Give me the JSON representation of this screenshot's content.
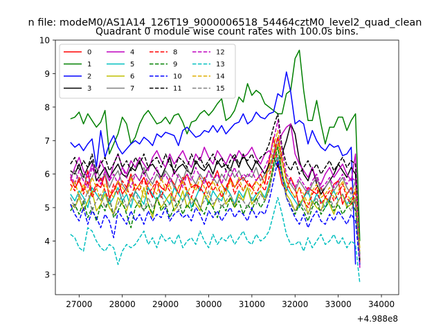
{
  "figure": {
    "suptitle": "n file: modeM0/AS1A14_126T19_9000006518_54464cztM0_level2_quad_clean",
    "offset_label": "+4.988e8"
  },
  "chart_data": {
    "type": "line",
    "title": "Quadrant 0 module wise count rates with 100.0s bins.",
    "xlabel": "",
    "ylabel": "",
    "xlim": [
      26450,
      34400
    ],
    "ylim": [
      2.4,
      10
    ],
    "xticks": [
      27000,
      28000,
      29000,
      30000,
      31000,
      32000,
      33000,
      34000
    ],
    "xtick_labels": [
      "27000",
      "28000",
      "29000",
      "30000",
      "31000",
      "32000",
      "33000",
      "34000"
    ],
    "yticks": [
      3,
      4,
      5,
      6,
      7,
      8,
      9,
      10
    ],
    "ytick_labels": [
      "3",
      "4",
      "5",
      "6",
      "7",
      "8",
      "9",
      "10"
    ],
    "x_offset": 498800000,
    "x_start": 26800,
    "x_step": 100,
    "legend": {
      "placement": "top-left",
      "ncols": 4
    },
    "series": [
      {
        "name": "0",
        "color": "#ff0000",
        "dash": "solid",
        "values": [
          5.9,
          5.6,
          5.8,
          5.5,
          6.1,
          5.4,
          5.7,
          5.6,
          6.0,
          5.3,
          5.5,
          5.8,
          5.4,
          5.6,
          6.0,
          5.5,
          5.7,
          5.9,
          5.6,
          5.3,
          5.8,
          5.6,
          5.5,
          5.9,
          5.7,
          5.4,
          5.8,
          6.0,
          5.6,
          5.7,
          5.5,
          5.9,
          5.6,
          5.8,
          6.1,
          5.7,
          5.5,
          5.9,
          5.6,
          5.8,
          5.9,
          5.7,
          5.6,
          5.8,
          6.0,
          5.7,
          6.4,
          7.1,
          6.3,
          5.7,
          5.5,
          5.9,
          5.6,
          5.0,
          5.3,
          5.6,
          5.5,
          5.4,
          5.6,
          5.3,
          5.2,
          5.7,
          5.8,
          5.1,
          5.4,
          5.6,
          5.1,
          3.4
        ]
      },
      {
        "name": "1",
        "color": "#008000",
        "dash": "solid",
        "values": [
          7.65,
          7.7,
          7.85,
          7.5,
          7.8,
          7.6,
          7.4,
          7.55,
          7.9,
          6.6,
          6.9,
          7.2,
          7.7,
          7.5,
          6.9,
          7.1,
          7.5,
          7.75,
          7.9,
          7.7,
          7.5,
          7.55,
          7.7,
          7.5,
          7.75,
          7.8,
          7.55,
          7.2,
          7.55,
          7.6,
          7.8,
          7.9,
          7.75,
          7.9,
          8.1,
          8.25,
          7.6,
          7.7,
          7.9,
          8.3,
          8.15,
          8.7,
          8.35,
          8.5,
          8.4,
          8.1,
          8.0,
          7.9,
          7.8,
          7.8,
          8.4,
          8.5,
          9.45,
          9.7,
          8.5,
          7.6,
          7.6,
          8.2,
          7.5,
          6.9,
          7.4,
          7.4,
          7.7,
          7.7,
          7.3,
          7.6,
          7.8,
          4.0
        ]
      },
      {
        "name": "2",
        "color": "#0000ff",
        "dash": "solid",
        "values": [
          6.95,
          6.8,
          6.9,
          6.7,
          6.9,
          7.05,
          6.2,
          7.3,
          6.5,
          6.9,
          7.15,
          6.8,
          6.6,
          6.75,
          6.9,
          7.0,
          6.9,
          7.1,
          7.0,
          6.85,
          7.2,
          7.1,
          7.25,
          7.2,
          7.15,
          6.85,
          7.3,
          7.4,
          7.25,
          7.1,
          7.15,
          7.3,
          7.25,
          7.45,
          7.25,
          7.45,
          7.2,
          7.35,
          7.5,
          7.55,
          7.8,
          7.5,
          7.6,
          7.85,
          7.7,
          7.65,
          7.8,
          7.85,
          8.4,
          8.3,
          9.05,
          8.45,
          7.5,
          7.6,
          7.5,
          6.9,
          7.3,
          7.0,
          6.8,
          6.7,
          6.9,
          6.8,
          6.85,
          6.55,
          6.6,
          6.8,
          3.3
        ]
      },
      {
        "name": "3",
        "color": "#000000",
        "dash": "solid",
        "values": [
          6.1,
          6.0,
          6.3,
          5.9,
          6.2,
          6.4,
          5.8,
          6.0,
          6.2,
          5.9,
          6.1,
          6.3,
          6.0,
          5.9,
          6.2,
          6.1,
          6.4,
          6.0,
          6.2,
          6.3,
          6.1,
          5.9,
          6.2,
          6.5,
          6.0,
          6.2,
          6.3,
          6.1,
          6.0,
          6.4,
          6.2,
          6.1,
          6.3,
          6.0,
          6.4,
          6.2,
          6.3,
          6.1,
          6.5,
          6.2,
          6.6,
          6.3,
          6.1,
          6.4,
          6.2,
          6.0,
          6.3,
          6.5,
          6.2,
          6.6,
          7.0,
          7.5,
          7.2,
          6.4,
          6.0,
          5.8,
          6.2,
          5.7,
          5.4,
          5.6,
          5.8,
          6.0,
          6.3,
          6.1,
          5.9,
          6.2,
          6.0,
          3.3
        ]
      },
      {
        "name": "4",
        "color": "#bf00bf",
        "dash": "solid",
        "values": [
          5.8,
          6.2,
          6.5,
          6.1,
          5.9,
          6.3,
          6.0,
          6.4,
          6.1,
          5.8,
          6.3,
          6.6,
          6.2,
          6.0,
          6.4,
          6.2,
          6.5,
          6.3,
          6.1,
          6.5,
          6.7,
          6.4,
          6.2,
          6.6,
          6.3,
          6.5,
          6.7,
          6.4,
          6.2,
          6.6,
          6.4,
          6.8,
          6.5,
          6.3,
          6.7,
          6.5,
          6.3,
          6.6,
          6.4,
          6.7,
          6.5,
          6.6,
          6.8,
          6.5,
          6.3,
          6.6,
          6.7,
          6.5,
          6.9,
          7.2,
          7.4,
          7.5,
          6.6,
          6.3,
          6.1,
          5.9,
          6.2,
          5.8,
          5.7,
          6.0,
          6.2,
          5.9,
          6.1,
          6.3,
          6.0,
          5.8,
          6.6,
          3.2
        ]
      },
      {
        "name": "5",
        "color": "#00bfbf",
        "dash": "solid",
        "values": [
          5.4,
          5.2,
          5.5,
          5.3,
          5.0,
          5.6,
          5.4,
          5.2,
          5.5,
          5.1,
          5.3,
          5.6,
          5.2,
          5.4,
          5.0,
          5.5,
          5.3,
          5.1,
          5.6,
          5.4,
          5.2,
          5.5,
          5.3,
          5.1,
          5.6,
          5.4,
          5.2,
          5.5,
          5.0,
          5.3,
          5.6,
          5.4,
          5.1,
          5.5,
          5.3,
          5.2,
          5.6,
          5.4,
          5.1,
          5.5,
          5.3,
          5.6,
          5.2,
          5.4,
          5.5,
          5.3,
          5.7,
          6.2,
          6.5,
          6.0,
          5.6,
          5.4,
          5.2,
          5.0,
          5.3,
          5.5,
          5.1,
          5.4,
          5.2,
          5.0,
          5.3,
          5.5,
          5.2,
          5.4,
          5.1,
          5.3,
          5.2,
          3.5
        ]
      },
      {
        "name": "6",
        "color": "#bfbf00",
        "dash": "solid",
        "values": [
          5.1,
          5.0,
          5.3,
          4.9,
          5.2,
          5.5,
          4.9,
          5.1,
          5.4,
          5.0,
          4.8,
          5.3,
          5.1,
          4.9,
          5.4,
          5.2,
          5.0,
          5.6,
          5.1,
          4.7,
          5.3,
          5.0,
          5.2,
          5.4,
          4.9,
          5.1,
          5.5,
          5.0,
          5.3,
          5.1,
          4.9,
          5.4,
          5.2,
          5.0,
          5.3,
          5.5,
          5.1,
          5.3,
          5.0,
          5.4,
          5.2,
          5.6,
          5.1,
          5.3,
          5.5,
          5.2,
          5.6,
          6.3,
          6.9,
          6.1,
          5.4,
          5.2,
          4.9,
          5.1,
          5.3,
          4.8,
          5.2,
          5.0,
          4.9,
          5.3,
          5.1,
          4.8,
          5.2,
          5.4,
          5.0,
          5.1,
          5.3,
          3.8
        ]
      },
      {
        "name": "7",
        "color": "#808080",
        "dash": "solid",
        "values": [
          5.9,
          6.1,
          5.8,
          6.0,
          5.7,
          5.9,
          6.2,
          5.8,
          6.0,
          5.6,
          5.9,
          6.1,
          5.7,
          5.5,
          5.9,
          6.0,
          5.8,
          6.2,
          5.9,
          5.7,
          6.0,
          5.8,
          6.1,
          5.9,
          5.6,
          6.0,
          5.8,
          6.2,
          5.9,
          5.7,
          6.0,
          5.8,
          6.1,
          5.9,
          5.7,
          6.0,
          5.8,
          6.2,
          5.9,
          6.1,
          5.8,
          6.0,
          5.9,
          6.2,
          5.8,
          6.0,
          6.1,
          6.6,
          7.1,
          6.4,
          5.9,
          5.7,
          5.5,
          5.8,
          5.6,
          5.4,
          5.7,
          5.9,
          5.5,
          5.6,
          5.8,
          5.5,
          5.7,
          5.9,
          5.6,
          5.4,
          5.8,
          3.6
        ]
      },
      {
        "name": "8",
        "color": "#ff0000",
        "dash": "dashed",
        "values": [
          5.7,
          5.5,
          5.9,
          5.4,
          5.8,
          5.3,
          5.6,
          5.9,
          5.5,
          5.2,
          5.7,
          5.4,
          5.8,
          5.6,
          5.3,
          5.7,
          5.5,
          5.9,
          5.4,
          5.6,
          5.8,
          5.3,
          5.7,
          5.5,
          5.2,
          5.6,
          5.9,
          5.5,
          5.3,
          5.7,
          5.6,
          5.4,
          5.8,
          5.5,
          5.7,
          5.3,
          5.6,
          5.9,
          5.4,
          5.7,
          5.5,
          5.8,
          5.6,
          5.4,
          5.7,
          5.5,
          5.9,
          6.5,
          7.1,
          6.4,
          5.8,
          5.5,
          5.3,
          5.6,
          5.2,
          5.0,
          5.4,
          5.6,
          5.1,
          5.3,
          5.5,
          5.2,
          5.4,
          5.7,
          5.3,
          5.1,
          5.5,
          3.4
        ]
      },
      {
        "name": "9",
        "color": "#008000",
        "dash": "dashed",
        "values": [
          4.9,
          5.1,
          4.8,
          5.2,
          4.7,
          5.0,
          4.6,
          5.1,
          4.9,
          5.3,
          4.7,
          4.9,
          5.2,
          4.8,
          4.4,
          5.0,
          5.2,
          4.9,
          5.1,
          4.8,
          5.3,
          4.9,
          5.1,
          4.7,
          5.0,
          5.2,
          4.8,
          5.1,
          4.9,
          5.3,
          5.0,
          4.8,
          5.2,
          5.0,
          4.7,
          5.1,
          4.9,
          5.3,
          5.0,
          5.2,
          4.8,
          5.1,
          4.9,
          5.3,
          5.0,
          5.2,
          5.5,
          6.3,
          6.8,
          6.0,
          5.3,
          5.0,
          4.8,
          5.1,
          4.9,
          4.6,
          5.0,
          5.2,
          4.8,
          5.0,
          5.2,
          4.9,
          5.1,
          4.8,
          5.0,
          5.2,
          4.9,
          3.6
        ]
      },
      {
        "name": "10",
        "color": "#0000ff",
        "dash": "dashed",
        "values": [
          5.1,
          4.8,
          4.6,
          5.0,
          4.5,
          4.9,
          4.7,
          4.4,
          4.8,
          4.6,
          4.1,
          4.9,
          4.7,
          4.5,
          4.9,
          4.6,
          4.8,
          4.5,
          4.9,
          4.6,
          4.8,
          4.7,
          5.0,
          4.6,
          4.8,
          4.9,
          4.7,
          4.8,
          4.6,
          5.0,
          4.8,
          4.5,
          4.9,
          4.7,
          4.9,
          4.6,
          4.8,
          5.0,
          4.7,
          4.9,
          4.8,
          4.6,
          5.0,
          4.7,
          4.9,
          4.8,
          5.2,
          5.8,
          6.4,
          5.9,
          5.3,
          5.0,
          4.7,
          4.5,
          4.8,
          4.4,
          4.7,
          4.9,
          4.6,
          4.5,
          4.8,
          4.6,
          4.9,
          4.7,
          4.5,
          4.8,
          4.6,
          3.3
        ]
      },
      {
        "name": "11",
        "color": "#000000",
        "dash": "dashed",
        "values": [
          6.3,
          6.5,
          6.1,
          6.4,
          6.2,
          6.6,
          6.0,
          6.3,
          6.5,
          6.1,
          6.3,
          6.6,
          6.2,
          6.4,
          6.1,
          6.5,
          6.3,
          6.6,
          6.2,
          6.4,
          6.5,
          6.2,
          6.6,
          6.3,
          6.1,
          6.5,
          6.4,
          6.2,
          6.6,
          6.3,
          6.5,
          6.2,
          6.4,
          6.6,
          6.3,
          6.5,
          6.1,
          6.4,
          6.6,
          6.3,
          6.5,
          6.4,
          6.6,
          6.3,
          6.5,
          6.6,
          6.9,
          7.4,
          7.8,
          6.8,
          6.3,
          6.1,
          6.4,
          6.0,
          6.2,
          6.4,
          6.1,
          6.3,
          6.0,
          6.2,
          6.4,
          6.1,
          6.3,
          6.5,
          6.2,
          6.4,
          6.3,
          3.4
        ]
      },
      {
        "name": "12",
        "color": "#bf00bf",
        "dash": "dashed",
        "values": [
          6.0,
          5.7,
          6.1,
          5.8,
          5.6,
          6.2,
          5.9,
          5.7,
          6.1,
          5.8,
          6.0,
          5.7,
          6.2,
          5.9,
          5.6,
          6.0,
          5.8,
          6.1,
          5.7,
          5.9,
          6.2,
          5.8,
          6.0,
          5.7,
          6.1,
          5.9,
          5.6,
          6.0,
          5.8,
          6.2,
          5.9,
          5.7,
          6.1,
          5.8,
          6.0,
          5.7,
          6.1,
          5.9,
          6.2,
          5.8,
          6.0,
          5.9,
          6.1,
          5.8,
          6.0,
          6.2,
          6.5,
          7.0,
          7.6,
          6.7,
          6.0,
          5.8,
          5.6,
          5.9,
          5.7,
          5.5,
          5.8,
          6.0,
          5.6,
          5.7,
          5.9,
          5.6,
          5.8,
          6.0,
          5.7,
          5.9,
          5.8,
          3.5
        ]
      },
      {
        "name": "13",
        "color": "#00bfbf",
        "dash": "dashed",
        "values": [
          4.2,
          4.1,
          3.8,
          3.7,
          4.4,
          4.3,
          4.0,
          3.8,
          3.7,
          3.9,
          3.8,
          3.3,
          3.7,
          3.9,
          3.8,
          3.9,
          4.1,
          4.3,
          3.9,
          4.1,
          3.8,
          4.2,
          4.0,
          4.1,
          3.9,
          4.2,
          3.8,
          4.0,
          4.1,
          3.9,
          4.3,
          4.0,
          3.8,
          4.2,
          3.9,
          4.1,
          4.0,
          4.2,
          3.9,
          4.1,
          4.3,
          4.0,
          3.9,
          4.2,
          4.0,
          4.1,
          4.3,
          4.8,
          5.3,
          4.8,
          4.2,
          3.9,
          3.9,
          4.0,
          3.7,
          4.1,
          3.8,
          4.0,
          4.2,
          3.9,
          4.0,
          4.2,
          3.9,
          4.1,
          3.8,
          4.0,
          3.9,
          2.75
        ]
      },
      {
        "name": "14",
        "color": "#dfae00",
        "dash": "dashed",
        "values": [
          5.5,
          5.8,
          5.3,
          5.7,
          5.4,
          5.9,
          5.6,
          5.2,
          5.7,
          5.5,
          5.3,
          5.8,
          5.6,
          5.4,
          5.9,
          5.5,
          5.7,
          5.3,
          5.8,
          5.6,
          5.4,
          5.9,
          5.5,
          5.7,
          5.2,
          5.6,
          5.8,
          5.4,
          5.7,
          5.5,
          5.9,
          5.6,
          5.3,
          5.8,
          5.5,
          5.7,
          5.4,
          5.8,
          5.6,
          5.9,
          5.5,
          5.7,
          5.4,
          5.8,
          5.6,
          5.9,
          6.2,
          6.8,
          7.3,
          6.5,
          5.8,
          5.5,
          5.3,
          5.6,
          5.4,
          5.1,
          5.5,
          5.7,
          5.3,
          5.4,
          5.6,
          5.3,
          5.5,
          5.8,
          5.4,
          5.2,
          5.6,
          3.7
        ]
      },
      {
        "name": "15",
        "color": "#808080",
        "dash": "dashed",
        "values": [
          5.3,
          5.0,
          5.4,
          5.1,
          5.5,
          4.9,
          5.2,
          5.4,
          5.0,
          5.3,
          4.8,
          5.1,
          5.4,
          5.0,
          5.2,
          5.5,
          5.1,
          4.9,
          5.3,
          5.0,
          5.2,
          5.4,
          5.0,
          5.1,
          5.3,
          4.9,
          5.2,
          5.4,
          5.1,
          5.3,
          5.0,
          5.2,
          5.5,
          5.1,
          5.3,
          5.0,
          5.2,
          5.4,
          5.1,
          5.3,
          5.2,
          5.0,
          5.3,
          5.1,
          5.4,
          5.2,
          5.5,
          6.1,
          6.6,
          5.9,
          5.3,
          5.1,
          4.9,
          5.2,
          5.0,
          4.8,
          5.1,
          5.3,
          4.9,
          5.1,
          5.3,
          5.0,
          5.2,
          5.4,
          5.1,
          4.9,
          5.3,
          3.5
        ]
      }
    ]
  }
}
